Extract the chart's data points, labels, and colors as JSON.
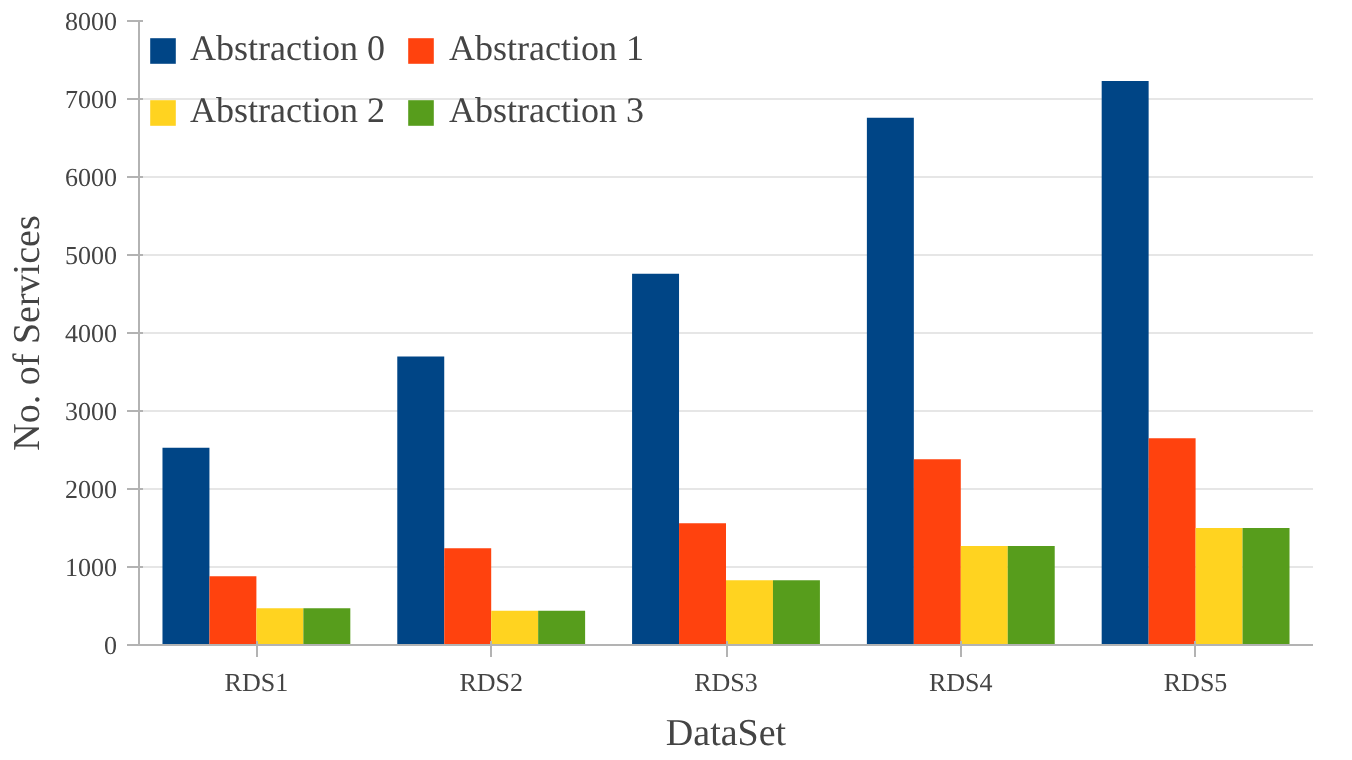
{
  "chart_data": {
    "type": "bar",
    "xlabel": "DataSet",
    "ylabel": "No. of Services",
    "categories": [
      "RDS1",
      "RDS2",
      "RDS3",
      "RDS4",
      "RDS5"
    ],
    "series": [
      {
        "name": "Abstraction 0",
        "color": "#004586",
        "values": [
          2530,
          3700,
          4760,
          6760,
          7230
        ]
      },
      {
        "name": "Abstraction 1",
        "color": "#ff420e",
        "values": [
          880,
          1240,
          1560,
          2380,
          2650
        ]
      },
      {
        "name": "Abstraction 2",
        "color": "#ffd320",
        "values": [
          470,
          440,
          830,
          1270,
          1500
        ]
      },
      {
        "name": "Abstraction 3",
        "color": "#579d1c",
        "values": [
          470,
          440,
          830,
          1270,
          1500
        ]
      }
    ],
    "ylim": [
      0,
      8000
    ],
    "yticks": [
      0,
      1000,
      2000,
      3000,
      4000,
      5000,
      6000,
      7000,
      8000
    ],
    "grid": "y",
    "legend": "top left"
  }
}
